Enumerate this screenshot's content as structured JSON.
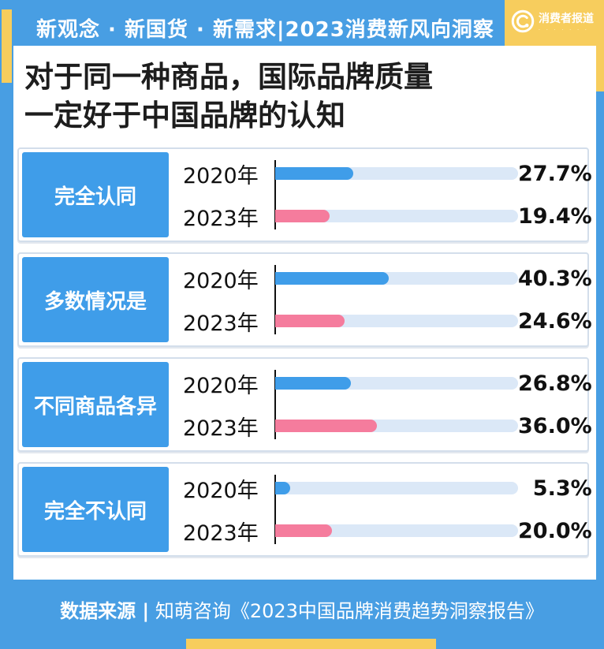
{
  "banner": {
    "text": "新观念 · 新国货 · 新需求|2023消费新风向洞察"
  },
  "logo": {
    "name": "消费者报道",
    "subtext": "· · · · · · ·"
  },
  "title": {
    "line1": "对于同一种商品，国际品牌质量",
    "line2": "一定好于中国品牌的认知"
  },
  "footer": {
    "source_label": "数据来源 |",
    "source_text": " 知萌咨询《2023中国品牌消费趋势洞察报告》"
  },
  "colors": {
    "page_blue": "#489EE3",
    "bar_blue": "#3F9DE9",
    "bar_pink": "#F57C9D",
    "track_blue": "#DBE8F7",
    "accent_yellow": "#F7CD5D",
    "text_dark": "#1D1D1D"
  },
  "chart_data": {
    "type": "bar",
    "title": "对于同一种商品，国际品牌质量一定好于中国品牌的认知",
    "categories": [
      "完全认同",
      "多数情况是",
      "不同商品各异",
      "完全不认同"
    ],
    "series": [
      {
        "name": "2020年",
        "color": "#3F9DE9",
        "values": [
          27.7,
          40.3,
          26.8,
          5.3
        ]
      },
      {
        "name": "2023年",
        "color": "#F57C9D",
        "values": [
          19.4,
          24.6,
          36.0,
          20.0
        ]
      }
    ],
    "value_labels": [
      [
        "27.7%",
        "19.4%"
      ],
      [
        "40.3%",
        "24.6%"
      ],
      [
        "26.8%",
        "36.0%"
      ],
      [
        "5.3%",
        "20.0%"
      ]
    ],
    "unit": "%",
    "xmax_percent": 86,
    "legend_position": "none",
    "grid": false,
    "source": "数据来源 | 知萌咨询《2023中国品牌消费趋势洞察报告》"
  }
}
